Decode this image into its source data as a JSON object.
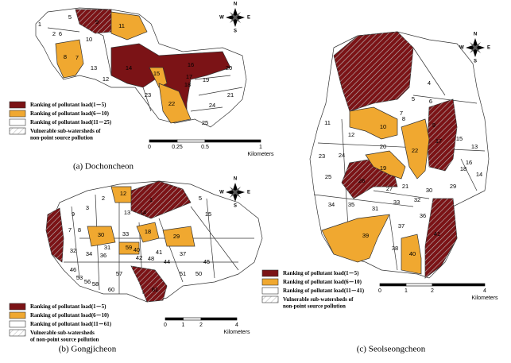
{
  "panels": [
    {
      "caption": "(a) Dochoncheon",
      "legend": [
        "Ranking of pollutant load(1－5)",
        "Ranking of pollutant load(6－10)",
        "Ranking of pollutant load(11－25)"
      ],
      "vulnerable": [
        "Vulnerable sub-watersheds of",
        "non-point source pollution"
      ],
      "scale": [
        "0",
        "0.25",
        "0.5",
        "1"
      ],
      "scale_unit": "Kilometers",
      "compass": [
        "N",
        "E",
        "S",
        "W"
      ],
      "labels": [
        "1",
        "2",
        "6",
        "5",
        "9",
        "11",
        "10",
        "8",
        "7",
        "13",
        "12",
        "14",
        "16",
        "20",
        "15",
        "17",
        "18",
        "19",
        "23",
        "22",
        "24",
        "21",
        "25"
      ]
    },
    {
      "caption": "(b) Gongjicheon",
      "legend": [
        "Ranking of pollutant load(1－5)",
        "Ranking of pollutant load(6－10)",
        "Ranking of pollutant load(11－61)"
      ],
      "vulnerable": [
        "Vulnerable sub-watersheds",
        "of non-point source pollution"
      ],
      "scale": [
        "0",
        "1",
        "2",
        "4"
      ],
      "scale_unit": "Kilometers",
      "compass": [
        "N",
        "E",
        "S",
        "W"
      ],
      "labels": [
        "12",
        "2",
        "5",
        "1",
        "3",
        "9",
        "13",
        "14",
        "15",
        "7",
        "8",
        "18",
        "29",
        "30",
        "31",
        "32",
        "34",
        "36",
        "40",
        "41",
        "44",
        "46",
        "48",
        "51",
        "53",
        "56",
        "57",
        "58",
        "59",
        "60",
        "61",
        "33",
        "37",
        "42",
        "45",
        "50"
      ]
    },
    {
      "caption": "(c) Seolseongcheon",
      "legend": [
        "Ranking of pollutant load(1－5)",
        "Ranking of pollutant load(6－10)",
        "Ranking of pollutant load(11－41)"
      ],
      "vulnerable": [
        "Vulnerable sub-watersheds of",
        "non-point source pollution"
      ],
      "scale": [
        "0",
        "1",
        "2",
        "4"
      ],
      "scale_unit": "Kilometers",
      "compass": [
        "N",
        "E",
        "S",
        "W"
      ],
      "labels": [
        "4",
        "6",
        "5",
        "7",
        "8",
        "9",
        "10",
        "11",
        "12",
        "13",
        "15",
        "16",
        "17",
        "18",
        "14",
        "20",
        "22",
        "19",
        "21",
        "23",
        "24",
        "25",
        "26",
        "27",
        "29",
        "30",
        "32",
        "31",
        "33",
        "34",
        "35",
        "36",
        "37",
        "38",
        "39",
        "40",
        "41"
      ]
    }
  ]
}
